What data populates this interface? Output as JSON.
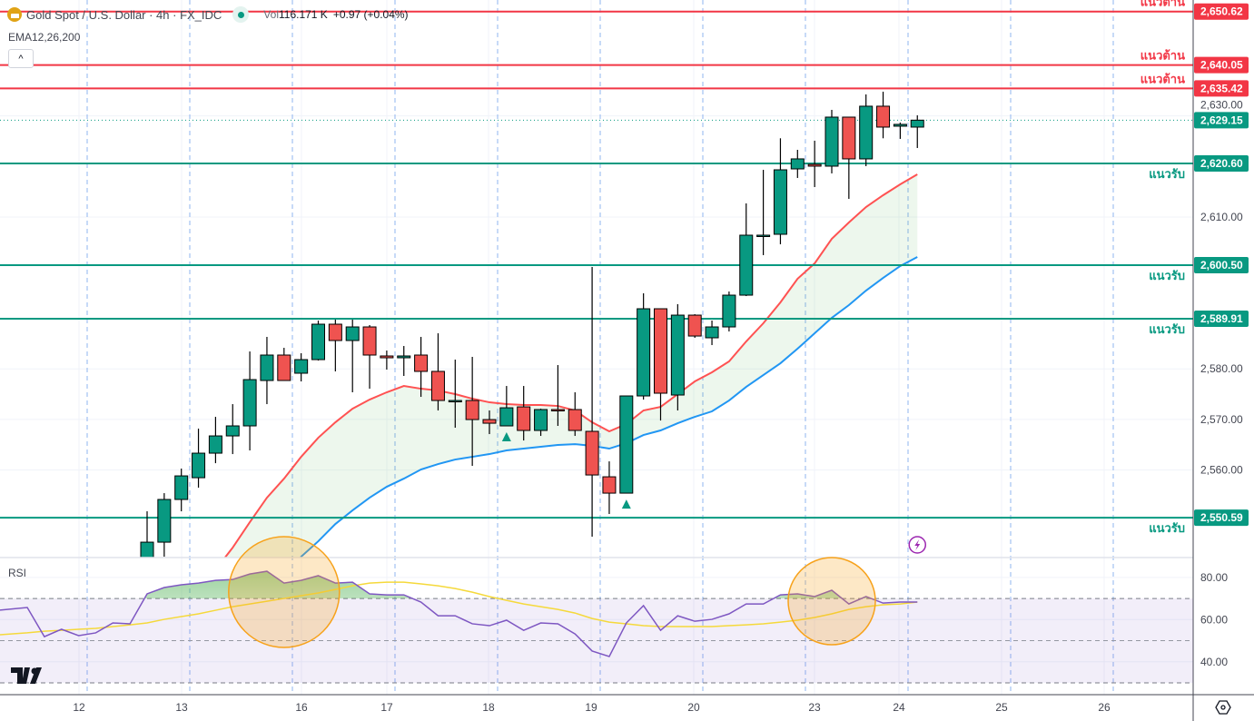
{
  "header": {
    "title": "Gold Spot / U.S. Dollar · 4h · FX_IDC",
    "vol_label": "Vol",
    "vol_value": "116.171 K",
    "change": "+0.97 (+0.04%)",
    "indicator": "EMA12,26,200",
    "collapse_icon": "^",
    "rsi_label": "RSI",
    "logo": "TV"
  },
  "colors": {
    "up": "#089981",
    "down": "#ef5350",
    "resistance": "#f23645",
    "support": "#089981",
    "ema12": "#ff5252",
    "ema26": "#2196f3",
    "rsi": "#7e57c2",
    "rsi_ma": "#f5d93b",
    "highlight": "#f7a21b"
  },
  "chart_data": [
    {
      "type": "candlestick",
      "title": "Gold Spot / U.S. Dollar · 4h · FX_IDC",
      "ylim": [
        2542.71,
        2652.9
      ],
      "price_ticks": [
        {
          "value": 2610,
          "label": "2,610.00"
        },
        {
          "value": 2580,
          "label": "2,580.00"
        },
        {
          "value": 2570,
          "label": "2,570.00"
        },
        {
          "value": 2560,
          "label": "2,560.00"
        }
      ],
      "current_price": {
        "value": 2629.15,
        "label": "2,629.15",
        "hidden_tick": "2,630.00"
      },
      "x_ticks": [
        "12",
        "13",
        "16",
        "17",
        "18",
        "19",
        "20",
        "23",
        "24",
        "25",
        "26"
      ],
      "candles_ohlc": [
        [
          2542.52,
          2551.85,
          2541.62,
          2545.75
        ],
        [
          2545.75,
          2555.44,
          2542.88,
          2554.19
        ],
        [
          2554.19,
          2560.29,
          2551.85,
          2558.85
        ],
        [
          2558.49,
          2568.19,
          2556.52,
          2563.34
        ],
        [
          2563.34,
          2570.52,
          2561.36,
          2566.75
        ],
        [
          2566.75,
          2573.03,
          2563.16,
          2568.73
        ],
        [
          2568.73,
          2583.44,
          2563.88,
          2577.88
        ],
        [
          2577.7,
          2586.32,
          2573.03,
          2582.73
        ],
        [
          2582.73,
          2584.16,
          2577.7,
          2577.7
        ],
        [
          2579.14,
          2583.09,
          2577.52,
          2581.83
        ],
        [
          2581.83,
          2589.55,
          2581.65,
          2588.83
        ],
        [
          2588.83,
          2589.73,
          2579.5,
          2585.6
        ],
        [
          2585.6,
          2589.73,
          2575.37,
          2588.29
        ],
        [
          2588.29,
          2588.65,
          2576.08,
          2582.73
        ],
        [
          2582.55,
          2583.62,
          2579.85,
          2582.19
        ],
        [
          2582.19,
          2584.52,
          2578.6,
          2582.55
        ],
        [
          2582.73,
          2586.32,
          2574.47,
          2579.5
        ],
        [
          2579.5,
          2587.03,
          2571.78,
          2573.75
        ],
        [
          2573.75,
          2581.83,
          2568.37,
          2573.75
        ],
        [
          2573.75,
          2582.37,
          2560.83,
          2569.98
        ],
        [
          2569.98,
          2571.78,
          2567.11,
          2569.26
        ],
        [
          2568.73,
          2576.62,
          2568.73,
          2572.31
        ],
        [
          2572.49,
          2576.62,
          2565.85,
          2567.83
        ],
        [
          2567.83,
          2572.13,
          2566.75,
          2571.96
        ],
        [
          2571.96,
          2580.75,
          2568.73,
          2571.78
        ],
        [
          2571.96,
          2575.37,
          2566.75,
          2567.83
        ],
        [
          2567.65,
          2600.14,
          2546.83,
          2559.03
        ],
        [
          2558.67,
          2561.72,
          2551.32,
          2555.44
        ],
        [
          2555.44,
          2574.65,
          2555.44,
          2574.65
        ],
        [
          2574.65,
          2594.93,
          2573.93,
          2591.88
        ],
        [
          2591.88,
          2591.88,
          2569.8,
          2575.19
        ],
        [
          2574.83,
          2592.78,
          2571.78,
          2590.62
        ],
        [
          2590.62,
          2590.8,
          2586.14,
          2586.49
        ],
        [
          2586.14,
          2589.55,
          2584.7,
          2588.29
        ],
        [
          2588.29,
          2595.29,
          2587.39,
          2594.57
        ],
        [
          2594.57,
          2612.7,
          2594.39,
          2606.42
        ],
        [
          2606.24,
          2619.34,
          2602.47,
          2606.42
        ],
        [
          2606.6,
          2625.57,
          2604.62,
          2619.34
        ],
        [
          2619.52,
          2623.29,
          2617.73,
          2621.5
        ],
        [
          2620.42,
          2625.09,
          2615.93,
          2620.06
        ],
        [
          2620.06,
          2631.19,
          2618.63,
          2629.75
        ],
        [
          2629.75,
          2629.75,
          2613.6,
          2621.5
        ],
        [
          2621.5,
          2634.24,
          2620.06,
          2631.91
        ],
        [
          2631.91,
          2634.78,
          2625.57,
          2627.78
        ],
        [
          2627.96,
          2628.68,
          2625.45,
          2628.32
        ],
        [
          2627.78,
          2630.11,
          2623.65,
          2629.15
        ]
      ],
      "ema12": [
        null,
        null,
        null,
        null,
        null,
        2544.67,
        2549.7,
        2554.54,
        2558.31,
        2562.62,
        2566.39,
        2569.44,
        2572.13,
        2573.93,
        2575.37,
        2576.62,
        2576.08,
        2575.72,
        2575.01,
        2574.11,
        2573.39,
        2573.03,
        2572.85,
        2572.85,
        2572.67,
        2571.78,
        2569.44,
        2567.65,
        2569.08,
        2571.78,
        2572.49,
        2575.01,
        2577.52,
        2579.32,
        2581.47,
        2585.42,
        2589.01,
        2593.14,
        2597.8,
        2600.85,
        2605.7,
        2608.93,
        2611.98,
        2614.32,
        2616.47,
        2618.45
      ],
      "ema26": [
        null,
        null,
        null,
        null,
        null,
        null,
        null,
        null,
        null,
        2542.88,
        2545.93,
        2549.34,
        2552.03,
        2554.54,
        2556.7,
        2558.31,
        2560.11,
        2561.19,
        2562.08,
        2562.62,
        2563.16,
        2563.88,
        2564.24,
        2564.6,
        2564.96,
        2565.13,
        2564.78,
        2564.24,
        2565.31,
        2566.93,
        2567.83,
        2569.26,
        2570.52,
        2571.6,
        2573.75,
        2576.44,
        2578.78,
        2581.11,
        2583.98,
        2587.03,
        2590.08,
        2592.6,
        2595.47,
        2597.98,
        2600.32,
        2602.11
      ],
      "buy_markers_candle_index": [
        21,
        28
      ],
      "levels": [
        {
          "value": 2650.62,
          "price_label": "2,650.62",
          "label": "แนวต้าน",
          "kind": "resistance"
        },
        {
          "value": 2640.05,
          "price_label": "2,640.05",
          "label": "แนวต้าน",
          "kind": "resistance"
        },
        {
          "value": 2635.42,
          "price_label": "2,635.42",
          "label": "แนวต้าน",
          "kind": "resistance"
        },
        {
          "value": 2620.6,
          "price_label": "2,620.60",
          "label": "แนวรับ",
          "kind": "support"
        },
        {
          "value": 2600.5,
          "price_label": "2,600.50",
          "label": "แนวรับ",
          "kind": "support"
        },
        {
          "value": 2589.91,
          "price_label": "2,589.91",
          "label": "แนวรับ",
          "kind": "support"
        },
        {
          "value": 2550.59,
          "price_label": "2,550.59",
          "label": "แนวรับ",
          "kind": "support"
        }
      ]
    },
    {
      "type": "line",
      "title": "RSI",
      "ylim": [
        24.4,
        89.4
      ],
      "band": [
        30,
        70
      ],
      "midline": 50,
      "ticks": [
        {
          "value": 80,
          "label": "80.00"
        },
        {
          "value": 60,
          "label": "60.00"
        },
        {
          "value": 40,
          "label": "40.00"
        }
      ],
      "rsi_first_candle_index": -8,
      "rsi": [
        64.5,
        65.7,
        51.9,
        55.4,
        52.4,
        53.7,
        58.4,
        58.0,
        72.2,
        75.2,
        76.5,
        77.3,
        78.6,
        79.0,
        81.6,
        82.9,
        77.3,
        78.6,
        80.8,
        77.3,
        77.7,
        72.2,
        71.7,
        71.7,
        68.3,
        61.8,
        61.8,
        58.0,
        57.1,
        59.7,
        54.9,
        58.4,
        58.0,
        53.2,
        45.1,
        42.5,
        58.4,
        66.6,
        54.9,
        61.8,
        59.2,
        60.1,
        62.7,
        67.4,
        67.4,
        71.7,
        72.2,
        70.9,
        73.9,
        67.4,
        70.9,
        67.8,
        68.3,
        68.3
      ],
      "rsi_ma": [
        52.8,
        53.7,
        54.5,
        54.9,
        55.4,
        55.8,
        56.7,
        57.5,
        58.4,
        60.1,
        61.4,
        62.7,
        64.4,
        66.1,
        67.4,
        68.7,
        70.0,
        71.3,
        72.6,
        74.3,
        76.0,
        77.3,
        77.7,
        77.7,
        76.9,
        76.0,
        74.7,
        73.0,
        70.9,
        69.1,
        67.4,
        66.1,
        64.8,
        63.1,
        60.5,
        58.8,
        58.0,
        57.1,
        56.7,
        56.7,
        56.7,
        56.7,
        57.1,
        57.5,
        58.0,
        58.8,
        59.7,
        61.0,
        62.7,
        64.8,
        66.1,
        67.0,
        67.4,
        68.3
      ],
      "highlight_circles_candle_index": [
        8,
        40
      ]
    }
  ]
}
